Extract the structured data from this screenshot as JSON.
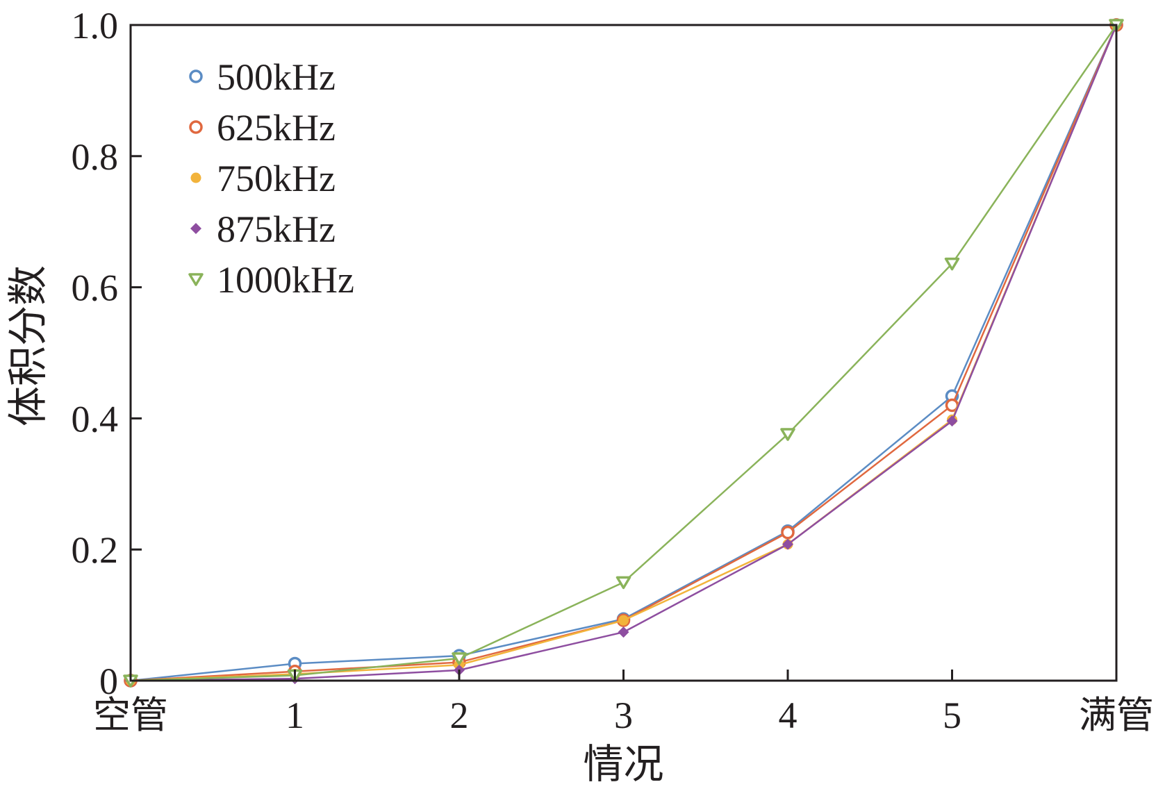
{
  "chart_data": {
    "type": "line",
    "xlabel": "情况",
    "ylabel": "体积分数",
    "categories": [
      "空管",
      "1",
      "2",
      "3",
      "4",
      "5",
      "满管"
    ],
    "ylim": [
      0,
      1.0
    ],
    "yticks": [
      "0",
      "0.2",
      "0.4",
      "0.6",
      "0.8",
      "1.0"
    ],
    "grid": false,
    "legend_position": "top-left",
    "series": [
      {
        "name": "500kHz",
        "color": "#5b8cc4",
        "marker": "circle-open",
        "values": [
          0.0,
          0.026,
          0.038,
          0.094,
          0.228,
          0.434,
          1.0
        ]
      },
      {
        "name": "625kHz",
        "color": "#e0683f",
        "marker": "circle-open",
        "values": [
          0.0,
          0.014,
          0.028,
          0.092,
          0.226,
          0.42,
          1.0
        ]
      },
      {
        "name": "750kHz",
        "color": "#f2b33b",
        "marker": "circle-filled",
        "values": [
          0.0,
          0.01,
          0.024,
          0.092,
          0.208,
          0.398,
          1.0
        ]
      },
      {
        "name": "875kHz",
        "color": "#8e4ea0",
        "marker": "diamond-filled",
        "values": [
          0.0,
          0.003,
          0.016,
          0.074,
          0.208,
          0.396,
          1.0
        ]
      },
      {
        "name": "1000kHz",
        "color": "#8ab35a",
        "marker": "triangle-down-open",
        "values": [
          0.0,
          0.008,
          0.034,
          0.15,
          0.376,
          0.636,
          1.0
        ]
      }
    ]
  }
}
